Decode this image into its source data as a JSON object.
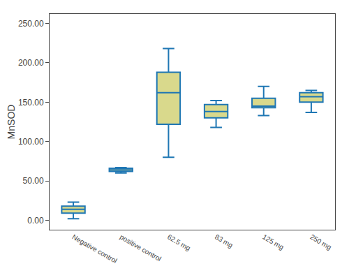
{
  "chart_data": {
    "type": "box",
    "categories": [
      "Negative control",
      "positive control",
      "62.5 mg",
      "83 mg",
      "125 mg",
      "250 mg"
    ],
    "q1": [
      9,
      62,
      122,
      130,
      143,
      150
    ],
    "median": [
      14,
      64,
      162,
      138,
      145,
      157
    ],
    "q3": [
      18,
      66,
      188,
      147,
      155,
      162
    ],
    "whisker_low": [
      2,
      60,
      80,
      118,
      133,
      137
    ],
    "whisker_high": [
      23,
      67,
      218,
      152,
      170,
      165
    ],
    "color": "#d9d98c",
    "ylabel": "MnSOD",
    "ylim": [
      -12,
      262
    ],
    "yticks": [
      {
        "value": 0,
        "label": "0.00"
      },
      {
        "value": 50,
        "label": "50.00"
      },
      {
        "value": 100,
        "label": "100.00"
      },
      {
        "value": 150,
        "label": "150.00"
      },
      {
        "value": 200,
        "label": "200.00"
      },
      {
        "value": 250,
        "label": "250.00"
      }
    ],
    "grid": false
  }
}
